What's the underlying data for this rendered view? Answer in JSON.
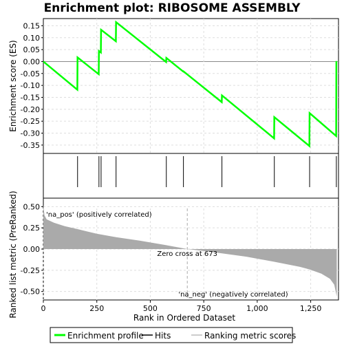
{
  "title": "Enrichment plot: RIBOSOME ASSEMBLY",
  "top_panel": {
    "ylabel": "Enrichment score (ES)",
    "ylim": [
      -0.385,
      0.18
    ],
    "yticks": [
      "0.15",
      "0.10",
      "0.05",
      "0.00",
      "-0.05",
      "-0.10",
      "-0.15",
      "-0.20",
      "-0.25",
      "-0.30",
      "-0.35"
    ],
    "ytick_values": [
      0.15,
      0.1,
      0.05,
      0.0,
      -0.05,
      -0.1,
      -0.15,
      -0.2,
      -0.25,
      -0.3,
      -0.35
    ]
  },
  "bottom_panel": {
    "ylabel": "Ranked list metric (PreRanked)",
    "xlabel": "Rank in Ordered Dataset",
    "ylim": [
      -0.6,
      0.6
    ],
    "yticks": [
      "0.50",
      "0.25",
      "0.00",
      "-0.25",
      "-0.50"
    ],
    "ytick_values": [
      0.5,
      0.25,
      0.0,
      -0.25,
      -0.5
    ],
    "xticks": [
      "0",
      "250",
      "500",
      "750",
      "1,000",
      "1,250"
    ],
    "xtick_values": [
      0,
      250,
      500,
      750,
      1000,
      1250
    ],
    "xlim": [
      0,
      1380
    ],
    "pos_label": "'na_pos' (positively correlated)",
    "neg_label": "'na_neg' (negatively correlated)",
    "zero_cross_label": "Zero cross at 673",
    "zero_cross": 673
  },
  "legend": {
    "items": [
      {
        "label": "Enrichment profile",
        "color": "#00ff00"
      },
      {
        "label": "Hits",
        "color": "#000000"
      },
      {
        "label": "Ranking metric scores",
        "color": "#bbbbbb"
      }
    ]
  },
  "colors": {
    "es_line": "#00ff00",
    "metric_fill": "#aaaaaa",
    "pos_label": "#cc0000",
    "neg_label": "#0000cc",
    "grid": "#dddddd"
  },
  "chart_data": {
    "type": "line",
    "n_genes": 1372,
    "hits": [
      160,
      260,
      270,
      340,
      575,
      655,
      835,
      1080,
      1245,
      1370
    ],
    "es_points": [
      [
        0,
        0.0
      ],
      [
        159,
        -0.118
      ],
      [
        160,
        0.017
      ],
      [
        259,
        -0.053
      ],
      [
        260,
        0.044
      ],
      [
        269,
        0.038
      ],
      [
        270,
        0.133
      ],
      [
        339,
        0.085
      ],
      [
        340,
        0.165
      ],
      [
        574,
        -0.002
      ],
      [
        575,
        0.015
      ],
      [
        654,
        -0.042
      ],
      [
        655,
        -0.041
      ],
      [
        834,
        -0.17
      ],
      [
        835,
        -0.142
      ],
      [
        1079,
        -0.322
      ],
      [
        1080,
        -0.233
      ],
      [
        1244,
        -0.354
      ],
      [
        1245,
        -0.216
      ],
      [
        1369,
        -0.312
      ],
      [
        1370,
        0.002
      ]
    ],
    "metric_profile": [
      [
        0,
        0.52
      ],
      [
        5,
        0.4
      ],
      [
        15,
        0.35
      ],
      [
        50,
        0.31
      ],
      [
        100,
        0.27
      ],
      [
        160,
        0.235
      ],
      [
        250,
        0.18
      ],
      [
        340,
        0.14
      ],
      [
        450,
        0.1
      ],
      [
        575,
        0.045
      ],
      [
        673,
        0.0
      ],
      [
        760,
        -0.025
      ],
      [
        835,
        -0.05
      ],
      [
        950,
        -0.09
      ],
      [
        1080,
        -0.15
      ],
      [
        1200,
        -0.21
      ],
      [
        1245,
        -0.24
      ],
      [
        1300,
        -0.29
      ],
      [
        1340,
        -0.35
      ],
      [
        1360,
        -0.42
      ],
      [
        1372,
        -0.56
      ]
    ],
    "bar_segments": [
      {
        "x0": 0,
        "x1": 20,
        "color": "#e00000"
      },
      {
        "x0": 20,
        "x1": 120,
        "color": "#ee2020"
      },
      {
        "x0": 120,
        "x1": 290,
        "color": "#ff5555"
      },
      {
        "x0": 290,
        "x1": 410,
        "color": "#ff6e6e"
      },
      {
        "x0": 410,
        "x1": 525,
        "color": "#ff9090"
      },
      {
        "x0": 525,
        "x1": 580,
        "color": "#ffbad2"
      },
      {
        "x0": 580,
        "x1": 655,
        "color": "#ffc6e0"
      },
      {
        "x0": 655,
        "x1": 810,
        "color": "#e2e2fb"
      },
      {
        "x0": 810,
        "x1": 955,
        "color": "#c6c6fb"
      },
      {
        "x0": 955,
        "x1": 1060,
        "color": "#8c8cf7"
      },
      {
        "x0": 1060,
        "x1": 1265,
        "color": "#6464ee"
      },
      {
        "x0": 1265,
        "x1": 1340,
        "color": "#3a1ad8"
      },
      {
        "x0": 1340,
        "x1": 1372,
        "color": "#2a00b8"
      }
    ]
  }
}
